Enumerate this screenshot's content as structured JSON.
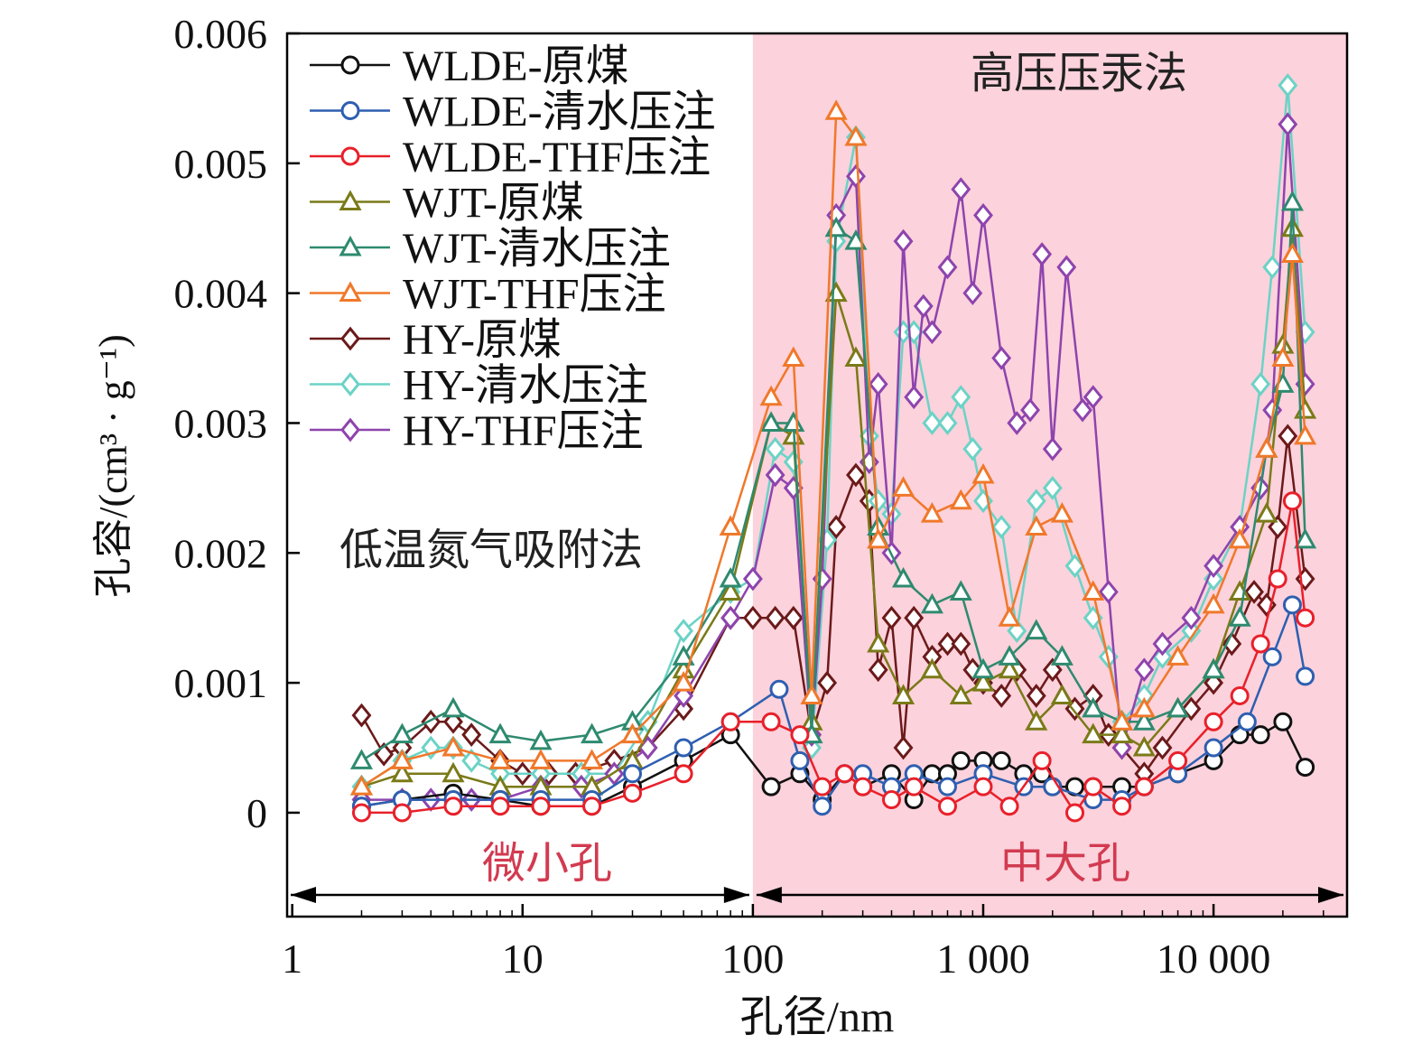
{
  "chart_data": {
    "type": "line",
    "x_scale": "log",
    "xlabel": "孔径/nm",
    "ylabel": "孔容/(cm³ · g⁻¹)",
    "xlim": [
      0.95,
      38000
    ],
    "ylim": [
      -0.0008,
      0.006
    ],
    "x_ticks": [
      1,
      10,
      100,
      1000,
      10000
    ],
    "x_tick_labels": [
      "1",
      "10",
      "100",
      "1 000",
      "10 000"
    ],
    "y_ticks": [
      0,
      0.001,
      0.002,
      0.003,
      0.004,
      0.005,
      0.006
    ],
    "y_tick_labels": [
      "0",
      "0.001",
      "0.002",
      "0.003",
      "0.004",
      "0.005",
      "0.006"
    ],
    "region_boundary": 100,
    "region_color": "#fcd2dc",
    "annotations": {
      "low_method": "低温氮气吸附法",
      "high_method": "高压压汞法",
      "left_range": "微小孔",
      "right_range": "中大孔"
    },
    "series": [
      {
        "name": "WLDE-原煤",
        "color": "#111111",
        "marker": "circle",
        "x": [
          2,
          3,
          5,
          8,
          12,
          20,
          30,
          50,
          80,
          120,
          160,
          200,
          250,
          300,
          400,
          500,
          600,
          700,
          800,
          1000,
          1200,
          1500,
          1800,
          2000,
          2500,
          3000,
          4000,
          5000,
          7000,
          10000,
          13000,
          16000,
          20000,
          25000
        ],
        "y": [
          5e-05,
          0.0001,
          0.00015,
          0.0001,
          5e-05,
          5e-05,
          0.0002,
          0.0004,
          0.0006,
          0.0002,
          0.0003,
          0.0001,
          0.0003,
          0.0002,
          0.0003,
          0.0001,
          0.0003,
          0.0003,
          0.0004,
          0.0004,
          0.0004,
          0.0003,
          0.0003,
          0.0002,
          0.0002,
          0.0002,
          0.0002,
          0.0002,
          0.0003,
          0.0004,
          0.0006,
          0.0006,
          0.0007,
          0.00035
        ]
      },
      {
        "name": "WLDE-清水压注",
        "color": "#2e5fb0",
        "marker": "circle",
        "x": [
          2,
          3,
          5,
          8,
          12,
          20,
          30,
          50,
          80,
          130,
          160,
          200,
          250,
          300,
          400,
          500,
          700,
          1000,
          1500,
          2000,
          3000,
          4000,
          5000,
          7000,
          10000,
          14000,
          18000,
          22000,
          25000
        ],
        "y": [
          5e-05,
          0.0001,
          0.0001,
          0.0001,
          0.0001,
          0.0001,
          0.0003,
          0.0005,
          0.0007,
          0.00095,
          0.0004,
          5e-05,
          0.0003,
          0.0003,
          0.0002,
          0.0003,
          0.0002,
          0.0003,
          0.0002,
          0.0002,
          0.0001,
          0.0001,
          0.0002,
          0.0003,
          0.0005,
          0.0007,
          0.0012,
          0.0016,
          0.00105
        ]
      },
      {
        "name": "WLDE-THF压注",
        "color": "#e8202a",
        "marker": "circle",
        "x": [
          2,
          3,
          5,
          8,
          12,
          20,
          30,
          50,
          80,
          120,
          160,
          200,
          250,
          300,
          400,
          500,
          700,
          1000,
          1300,
          1800,
          2500,
          3000,
          4000,
          5000,
          7000,
          10000,
          13000,
          16000,
          19000,
          22000,
          25000
        ],
        "y": [
          0,
          0,
          5e-05,
          5e-05,
          5e-05,
          5e-05,
          0.00015,
          0.0003,
          0.0007,
          0.0007,
          0.0006,
          0.0002,
          0.0003,
          0.0002,
          0.0001,
          0.0002,
          5e-05,
          0.0002,
          5e-05,
          0.0004,
          0,
          0.0002,
          5e-05,
          0.0002,
          0.0004,
          0.0007,
          0.0009,
          0.0013,
          0.0018,
          0.0024,
          0.0015
        ]
      },
      {
        "name": "WJT-原煤",
        "color": "#7a7a18",
        "marker": "triangle",
        "x": [
          2,
          3,
          5,
          8,
          12,
          20,
          30,
          50,
          80,
          120,
          150,
          180,
          230,
          280,
          350,
          450,
          600,
          800,
          1000,
          1300,
          1700,
          2200,
          3000,
          4000,
          5000,
          7000,
          10000,
          13000,
          17000,
          20000,
          22000,
          25000
        ],
        "y": [
          0.0002,
          0.0003,
          0.0003,
          0.0002,
          0.0002,
          0.0002,
          0.0004,
          0.0011,
          0.0017,
          0.003,
          0.0029,
          0.0007,
          0.004,
          0.0035,
          0.0013,
          0.0009,
          0.0011,
          0.0009,
          0.001,
          0.0011,
          0.0007,
          0.0009,
          0.0006,
          0.0006,
          0.0005,
          0.0008,
          0.0011,
          0.0017,
          0.0023,
          0.0036,
          0.0045,
          0.0031
        ]
      },
      {
        "name": "WJT-清水压注",
        "color": "#2e8a6f",
        "marker": "triangle",
        "x": [
          2,
          3,
          5,
          8,
          12,
          20,
          30,
          50,
          80,
          120,
          150,
          180,
          230,
          280,
          350,
          450,
          600,
          800,
          1000,
          1300,
          1700,
          2200,
          3000,
          4000,
          5000,
          7000,
          10000,
          13000,
          17000,
          20000,
          22000,
          25000
        ],
        "y": [
          0.0004,
          0.0006,
          0.0008,
          0.0006,
          0.00055,
          0.0006,
          0.0007,
          0.0012,
          0.0018,
          0.003,
          0.003,
          0.0006,
          0.0045,
          0.0044,
          0.0022,
          0.0018,
          0.0016,
          0.0017,
          0.0011,
          0.0012,
          0.0014,
          0.0012,
          0.0008,
          0.0007,
          0.0007,
          0.0008,
          0.0011,
          0.0015,
          0.0028,
          0.0033,
          0.0047,
          0.0021
        ]
      },
      {
        "name": "WJT-THF压注",
        "color": "#f0782a",
        "marker": "triangle",
        "x": [
          2,
          3,
          5,
          8,
          12,
          20,
          30,
          50,
          80,
          120,
          150,
          180,
          230,
          280,
          350,
          450,
          600,
          800,
          1000,
          1300,
          1700,
          2200,
          3000,
          4000,
          5000,
          7000,
          10000,
          13000,
          17000,
          20000,
          22000,
          25000
        ],
        "y": [
          0.0002,
          0.0004,
          0.0005,
          0.0004,
          0.0004,
          0.0004,
          0.0006,
          0.001,
          0.0022,
          0.0032,
          0.0035,
          0.0009,
          0.0054,
          0.0052,
          0.0021,
          0.0025,
          0.0023,
          0.0024,
          0.0026,
          0.0015,
          0.0022,
          0.0023,
          0.0017,
          0.0007,
          0.0008,
          0.0012,
          0.0016,
          0.0021,
          0.0028,
          0.0035,
          0.0043,
          0.0029
        ]
      },
      {
        "name": "HY-原煤",
        "color": "#6b1a1a",
        "marker": "diamond",
        "x": [
          2,
          2.5,
          3,
          4,
          5,
          6,
          8,
          10,
          13,
          17,
          25,
          35,
          50,
          80,
          100,
          125,
          150,
          180,
          210,
          230,
          280,
          320,
          350,
          400,
          450,
          500,
          600,
          700,
          800,
          900,
          1000,
          1200,
          1400,
          1700,
          2000,
          2500,
          3000,
          3500,
          4000,
          5000,
          6000,
          8000,
          10000,
          12000,
          15000,
          17000,
          19000,
          21000,
          25000
        ],
        "y": [
          0.00075,
          0.00045,
          0.0005,
          0.0007,
          0.0007,
          0.0006,
          0.0004,
          0.0003,
          0.0003,
          0.0003,
          0.0004,
          0.0005,
          0.0008,
          0.0015,
          0.0015,
          0.0015,
          0.0015,
          0.0006,
          0.001,
          0.0022,
          0.0026,
          0.0024,
          0.0011,
          0.0015,
          0.0005,
          0.0015,
          0.0012,
          0.0013,
          0.0013,
          0.0011,
          0.001,
          0.0009,
          0.0011,
          0.0009,
          0.0011,
          0.0008,
          0.0009,
          0.0006,
          0.0005,
          0.0003,
          0.0005,
          0.0008,
          0.001,
          0.0013,
          0.0017,
          0.0016,
          0.0022,
          0.0029,
          0.0018
        ]
      },
      {
        "name": "HY-清水压注",
        "color": "#6bd3c6",
        "marker": "diamond",
        "x": [
          2,
          3,
          4,
          5,
          6,
          8,
          12,
          18,
          25,
          35,
          50,
          80,
          100,
          125,
          150,
          180,
          210,
          230,
          280,
          320,
          350,
          400,
          450,
          500,
          600,
          700,
          800,
          900,
          1000,
          1200,
          1400,
          1700,
          2000,
          2500,
          3000,
          3500,
          4000,
          5000,
          6000,
          8000,
          10000,
          13000,
          16000,
          18000,
          21000,
          25000
        ],
        "y": [
          0.0002,
          0.0004,
          0.0005,
          0.0005,
          0.0004,
          0.0003,
          0.0003,
          0.0003,
          0.0003,
          0.0007,
          0.0014,
          0.0017,
          0.0018,
          0.0028,
          0.0027,
          0.0005,
          0.0021,
          0.0044,
          0.0052,
          0.0029,
          0.0024,
          0.0023,
          0.0037,
          0.0037,
          0.003,
          0.003,
          0.0032,
          0.0028,
          0.0024,
          0.0022,
          0.0014,
          0.0024,
          0.0025,
          0.0019,
          0.0015,
          0.0012,
          0.0007,
          0.0009,
          0.0012,
          0.0014,
          0.0018,
          0.0022,
          0.0033,
          0.0042,
          0.0056,
          0.0037
        ]
      },
      {
        "name": "HY-THF压注",
        "color": "#8e44ad",
        "marker": "diamond",
        "x": [
          2,
          3,
          4,
          5,
          6,
          8,
          12,
          18,
          25,
          35,
          50,
          80,
          100,
          125,
          150,
          180,
          200,
          230,
          280,
          320,
          350,
          400,
          450,
          500,
          550,
          600,
          700,
          800,
          900,
          1000,
          1200,
          1400,
          1600,
          1800,
          2000,
          2300,
          2700,
          3000,
          3500,
          4000,
          5000,
          6000,
          8000,
          10000,
          13000,
          16000,
          18000,
          21000,
          25000
        ],
        "y": [
          0.0001,
          0.0001,
          0.0001,
          0.0001,
          0.0001,
          0.0001,
          0.0002,
          0.0002,
          0.0003,
          0.0005,
          0.0009,
          0.0015,
          0.0018,
          0.0026,
          0.0025,
          0.0006,
          0.0018,
          0.0046,
          0.0049,
          0.0027,
          0.0033,
          0.002,
          0.0044,
          0.0032,
          0.0039,
          0.0037,
          0.0042,
          0.0048,
          0.004,
          0.0046,
          0.0035,
          0.003,
          0.0031,
          0.0043,
          0.0028,
          0.0042,
          0.0031,
          0.0032,
          0.0017,
          0.0005,
          0.0011,
          0.0013,
          0.0015,
          0.0019,
          0.0022,
          0.0025,
          0.0031,
          0.0053,
          0.0033
        ]
      }
    ]
  }
}
